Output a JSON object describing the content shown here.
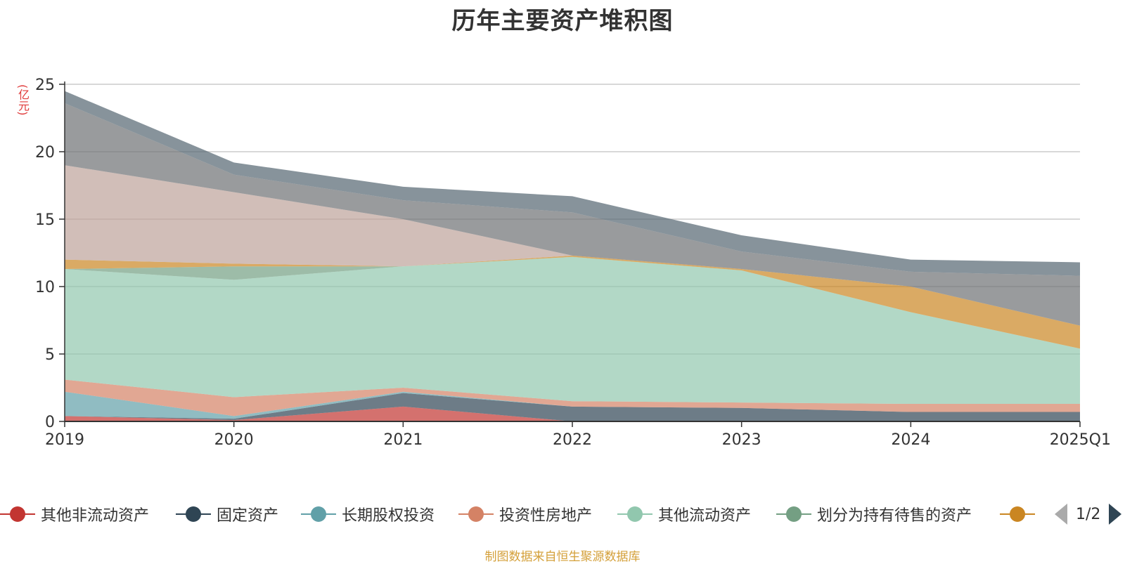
{
  "title": "历年主要资产堆积图",
  "unit_label": "(亿元)",
  "source_note": "制图数据来自恒生聚源数据库",
  "pager": {
    "text": "1/2"
  },
  "legend": [
    {
      "name": "其他非流动资产",
      "color": "#c23531"
    },
    {
      "name": "固定资产",
      "color": "#2f4554"
    },
    {
      "name": "长期股权投资",
      "color": "#61a0a8"
    },
    {
      "name": "投资性房地产",
      "color": "#d48265"
    },
    {
      "name": "其他流动资产",
      "color": "#91c7ae"
    },
    {
      "name": "划分为持有待售的资产",
      "color": "#749f83"
    },
    {
      "name": "",
      "color": "#ca8622"
    }
  ],
  "chart_data": {
    "type": "area",
    "stacked": true,
    "categories": [
      "2019",
      "2020",
      "2021",
      "2022",
      "2023",
      "2024",
      "2025Q1"
    ],
    "y_ticks": [
      "0",
      "5",
      "10",
      "15",
      "20",
      "25"
    ],
    "ylim": [
      0,
      25
    ],
    "grid": true,
    "legend_position": "bottom",
    "series": [
      {
        "name": "其他非流动资产",
        "color": "#c23531",
        "values": [
          0.4,
          0.1,
          1.1,
          0.0,
          0.0,
          0.0,
          0.0
        ]
      },
      {
        "name": "固定资产",
        "color": "#2f4554",
        "values": [
          0.0,
          0.1,
          1.0,
          1.1,
          1.0,
          0.7,
          0.7
        ]
      },
      {
        "name": "长期股权投资",
        "color": "#61a0a8",
        "values": [
          1.8,
          0.2,
          0.1,
          0.0,
          0.0,
          0.0,
          0.0
        ]
      },
      {
        "name": "投资性房地产",
        "color": "#d48265",
        "values": [
          0.9,
          1.4,
          0.3,
          0.4,
          0.4,
          0.6,
          0.6
        ]
      },
      {
        "name": "其他流动资产",
        "color": "#91c7ae",
        "values": [
          8.2,
          8.7,
          9.0,
          10.7,
          9.8,
          6.8,
          4.1
        ]
      },
      {
        "name": "划分为持有待售的资产",
        "color": "#749f83",
        "values": [
          0.0,
          1.0,
          0.0,
          0.0,
          0.0,
          0.0,
          0.0
        ]
      },
      {
        "name": "",
        "color": "#ca8622",
        "values": [
          0.7,
          0.2,
          0.0,
          0.1,
          0.1,
          1.9,
          1.7
        ]
      },
      {
        "name": "",
        "color": "#bda29a",
        "values": [
          7.0,
          5.3,
          3.5,
          0.0,
          0.0,
          0.0,
          0.0
        ]
      },
      {
        "name": "",
        "color": "#6e7074",
        "values": [
          4.6,
          1.3,
          1.4,
          3.2,
          1.3,
          1.1,
          3.7
        ]
      },
      {
        "name": "",
        "color": "#546570",
        "values": [
          0.9,
          0.9,
          1.0,
          1.2,
          1.2,
          0.9,
          1.0
        ]
      }
    ]
  }
}
